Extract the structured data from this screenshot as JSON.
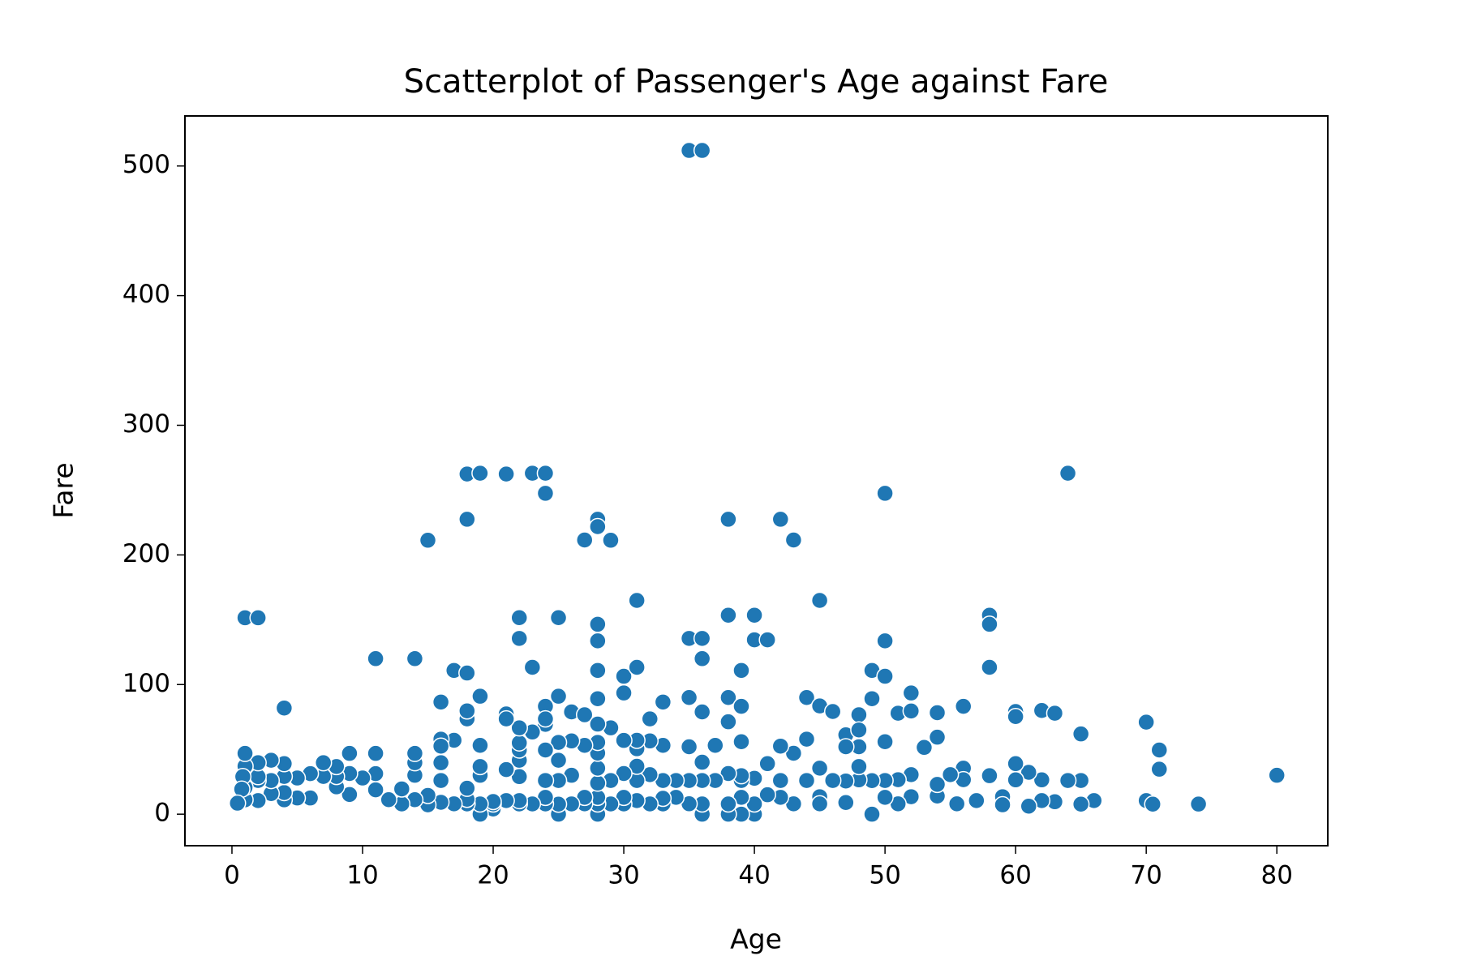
{
  "chart_data": {
    "type": "scatter",
    "title": "Scatterplot of Passenger's Age against Fare",
    "x_label": "Age",
    "y_label": "Fare",
    "color": "#1f77b4",
    "xlim": [
      -3.6,
      83.9
    ],
    "ylim": [
      -24.3,
      538.6
    ],
    "xticks": [
      0,
      10,
      20,
      30,
      40,
      50,
      60,
      70,
      80
    ],
    "yticks": [
      0,
      100,
      200,
      300,
      400,
      500
    ],
    "x": [
      35,
      36,
      1,
      2,
      4,
      11,
      14,
      15,
      16,
      17,
      18,
      18,
      18,
      19,
      19,
      21,
      21,
      22,
      22,
      23,
      23,
      24,
      24,
      24,
      25,
      25,
      26,
      27,
      27,
      28,
      28,
      28,
      28,
      28,
      28,
      29,
      30,
      30,
      31,
      31,
      32,
      33,
      35,
      35,
      36,
      36,
      36,
      38,
      38,
      38,
      38,
      39,
      39,
      40,
      40,
      41,
      42,
      43,
      44,
      45,
      45,
      46,
      47,
      48,
      49,
      49,
      50,
      50,
      50,
      51,
      52,
      52,
      54,
      54,
      56,
      58,
      58,
      58,
      60,
      60,
      62,
      63,
      64,
      65,
      70,
      71,
      71,
      74,
      80,
      70,
      70.5,
      66,
      65,
      65,
      64,
      63,
      62,
      62,
      61,
      61,
      60,
      60,
      59,
      59,
      58,
      57,
      56,
      56,
      55.5,
      55,
      54,
      54,
      53,
      52,
      52,
      51,
      51,
      50,
      50,
      50,
      49,
      49,
      48,
      48,
      48,
      48,
      47,
      47,
      47,
      46,
      45,
      45,
      45,
      44,
      44,
      43,
      43,
      42,
      42,
      42,
      41,
      41,
      40,
      40,
      40,
      39,
      39,
      39,
      39,
      39,
      38,
      38,
      38,
      37,
      37,
      36,
      36,
      36,
      36,
      35,
      35,
      35,
      34,
      34,
      33,
      33,
      33,
      33,
      32,
      32,
      32,
      31,
      31,
      31,
      31,
      31,
      30,
      30,
      30,
      30,
      29,
      29,
      29,
      28,
      28,
      28,
      28,
      28,
      28,
      28,
      28,
      27,
      27,
      27,
      26,
      26,
      26,
      25,
      25,
      25,
      25,
      25,
      24,
      24,
      24,
      24,
      24,
      24,
      23,
      23,
      22,
      22,
      22,
      22,
      22,
      22,
      22,
      21,
      21,
      21,
      20,
      20,
      20,
      19,
      19,
      19,
      19,
      19,
      18,
      18,
      18,
      18,
      18,
      17,
      17,
      16,
      16,
      16,
      16,
      16,
      15,
      15,
      14,
      14,
      14,
      14,
      13,
      13,
      12,
      11,
      11,
      11,
      10,
      9,
      9,
      9,
      8,
      8,
      8,
      7,
      7,
      6,
      6,
      5,
      5,
      4,
      4,
      4,
      4,
      3,
      3,
      3,
      2,
      2,
      2,
      2,
      1,
      1,
      1,
      1,
      0.83,
      0.75,
      0.42
    ],
    "values": [
      512,
      512,
      151.5,
      151.5,
      81.9,
      120,
      120,
      211.3,
      86.5,
      110.9,
      108.9,
      262.4,
      227.5,
      263,
      91,
      262.4,
      77.3,
      151.6,
      135.6,
      263,
      113.3,
      263,
      247.5,
      83.2,
      151.6,
      91,
      78.9,
      211.5,
      76.7,
      227.5,
      221.8,
      146.5,
      133.7,
      110.9,
      89.1,
      211.3,
      106.4,
      93.5,
      164.9,
      113.3,
      73.5,
      86.5,
      135.6,
      90,
      135.6,
      120,
      78.9,
      227.5,
      153.5,
      90,
      71.3,
      110.9,
      83.2,
      153.5,
      134.5,
      134.5,
      227.5,
      211.5,
      90,
      164.9,
      83.5,
      79.2,
      61.2,
      76.7,
      110.9,
      89.1,
      247.5,
      133.7,
      106.4,
      77.9,
      93.5,
      79.6,
      78.3,
      59.4,
      83.2,
      153.5,
      146.5,
      113.3,
      79.2,
      75.3,
      80,
      77.9,
      263,
      61.9,
      71,
      49.5,
      34.7,
      7.8,
      30,
      10.5,
      7.75,
      10.5,
      26,
      7.75,
      26,
      9.6,
      10.5,
      26.5,
      6.2,
      32.3,
      26.5,
      39,
      13.5,
      7.25,
      29.7,
      10.5,
      35.5,
      26.6,
      8,
      30.5,
      14,
      23,
      51.5,
      30.5,
      13.5,
      26.6,
      8,
      13,
      26,
      55.9,
      0,
      25.9,
      65,
      52,
      26.5,
      36.75,
      9,
      25.6,
      52,
      26,
      35.5,
      13.5,
      8,
      26,
      57.9,
      8,
      47,
      13,
      26,
      52.5,
      15,
      39,
      0,
      7.9,
      27.7,
      0,
      13,
      26,
      29.7,
      55.9,
      0,
      7.9,
      31.4,
      26,
      53.1,
      0,
      7.9,
      26,
      40.1,
      8.05,
      26,
      52,
      13,
      26,
      7.9,
      12.3,
      26,
      53.1,
      7.9,
      30.5,
      56.5,
      10.5,
      26,
      37,
      50.5,
      57,
      7.9,
      13,
      31.4,
      56.9,
      7.9,
      26,
      66.6,
      0,
      7.9,
      13,
      24,
      35.5,
      47.1,
      55.4,
      69.5,
      8,
      13,
      53.1,
      7.9,
      30,
      56.5,
      0,
      7.75,
      26,
      41.6,
      55.4,
      7.9,
      13,
      26,
      49.5,
      69.3,
      73.5,
      7.9,
      63.4,
      7.9,
      10.5,
      29,
      41.6,
      49.5,
      55,
      66.6,
      10.5,
      34.4,
      73.5,
      4,
      7.9,
      9.8,
      0,
      7.9,
      30,
      36.75,
      53.1,
      7.9,
      11.5,
      20,
      73.5,
      79.7,
      8,
      57,
      9.2,
      26,
      39.7,
      57.9,
      52.5,
      7.2,
      14.5,
      11.2,
      30,
      39.7,
      46.9,
      7.9,
      19.5,
      11.2,
      18.8,
      31.3,
      46.9,
      27.9,
      15.2,
      31.4,
      46.9,
      21.1,
      29.1,
      36.75,
      29.1,
      39.7,
      12.5,
      31.3,
      12.5,
      27.9,
      11.1,
      16.7,
      29.1,
      39,
      15.9,
      26,
      41.6,
      10.5,
      26,
      29,
      39.7,
      11.1,
      20.6,
      37,
      46.9,
      29,
      19.3,
      8.5
    ]
  }
}
